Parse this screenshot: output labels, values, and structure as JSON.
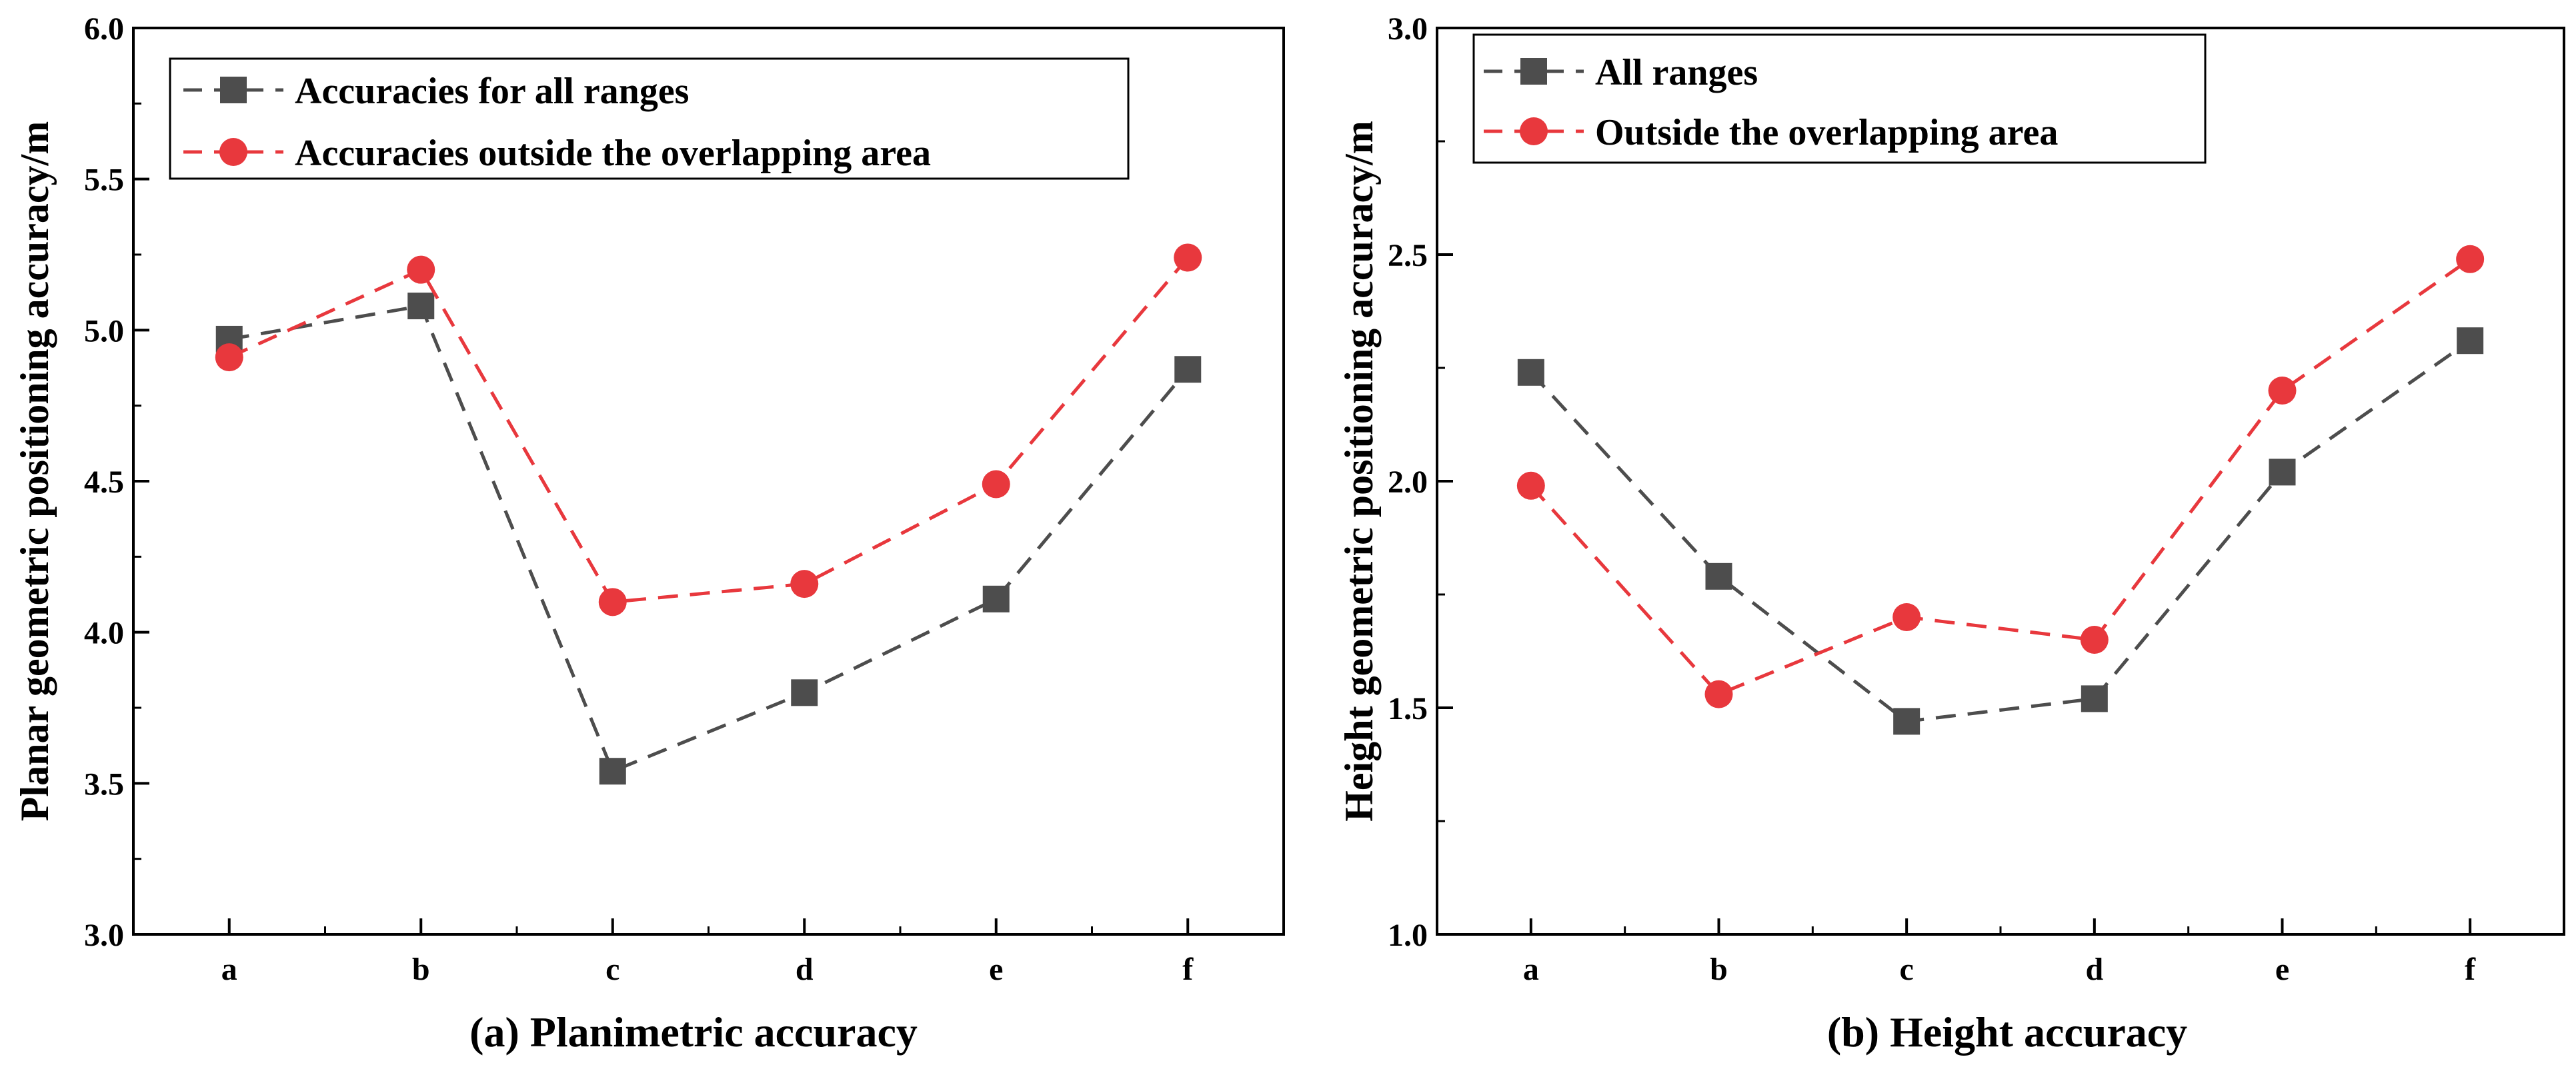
{
  "chart_data": [
    {
      "type": "line",
      "caption": "(a) Planimetric accuracy",
      "xlabel": "",
      "ylabel": "Planar geometric positioning accuracy/m",
      "categories": [
        "a",
        "b",
        "c",
        "d",
        "e",
        "f"
      ],
      "ylim": [
        3.0,
        6.0
      ],
      "yticks": [
        "3.0",
        "3.5",
        "4.0",
        "4.5",
        "5.0",
        "5.5",
        "6.0"
      ],
      "grid": false,
      "legend_position": "top-left",
      "series": [
        {
          "name": "Accuracies for all ranges",
          "color": "#4d4d4d",
          "marker": "square",
          "values": [
            4.97,
            5.08,
            3.54,
            3.8,
            4.11,
            4.87
          ]
        },
        {
          "name": "Accuracies outside the overlapping area",
          "color": "#e8383d",
          "marker": "circle",
          "values": [
            4.91,
            5.2,
            4.1,
            4.16,
            4.49,
            5.24
          ]
        }
      ]
    },
    {
      "type": "line",
      "caption": "(b) Height accuracy",
      "xlabel": "",
      "ylabel": "Height geometric positioning accuracy/m",
      "categories": [
        "a",
        "b",
        "c",
        "d",
        "e",
        "f"
      ],
      "ylim": [
        1.0,
        3.0
      ],
      "yticks": [
        "1.0",
        "1.5",
        "2.0",
        "2.5",
        "3.0"
      ],
      "grid": false,
      "legend_position": "top-left",
      "series": [
        {
          "name": "All ranges",
          "color": "#4d4d4d",
          "marker": "square",
          "values": [
            2.24,
            1.79,
            1.47,
            1.52,
            2.02,
            2.31
          ]
        },
        {
          "name": "Outside the overlapping area",
          "color": "#e8383d",
          "marker": "circle",
          "values": [
            1.99,
            1.53,
            1.7,
            1.65,
            2.2,
            2.49
          ]
        }
      ]
    }
  ]
}
